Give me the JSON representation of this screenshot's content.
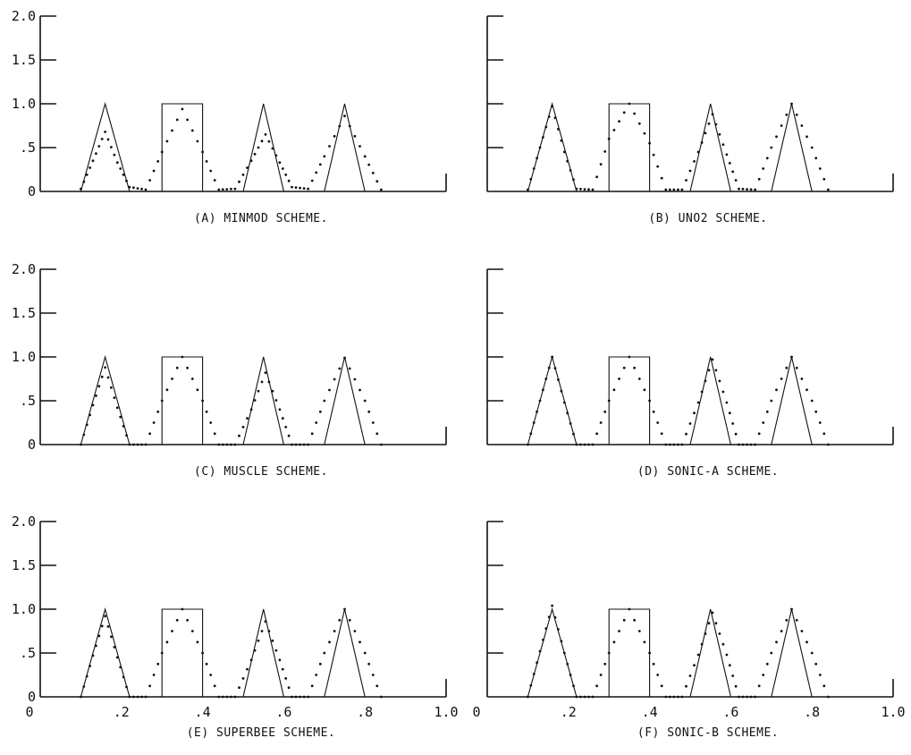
{
  "figure": {
    "shared_x_tick_labels": [
      "0",
      ".2",
      ".4",
      ".6",
      ".8",
      "1.0"
    ],
    "y_tick_labels": [
      "2.0",
      "1.5",
      "1.0",
      ".5",
      "0"
    ]
  },
  "chart_data": [
    {
      "type": "line",
      "caption": "(A) MINMOD SCHEME.",
      "xlim": [
        0,
        1.0
      ],
      "ylim": [
        0,
        2.0
      ],
      "y_ticks": [
        2.0,
        1.5,
        1.0,
        0.5,
        0
      ],
      "series": [
        {
          "style": "solid",
          "x": [
            0.1,
            0.16,
            0.22,
            0.3,
            0.3,
            0.4,
            0.4,
            0.5,
            0.55,
            0.6,
            0.7,
            0.75,
            0.8
          ],
          "y": [
            0,
            1.0,
            0,
            0,
            1.0,
            1.0,
            0,
            0,
            1.0,
            0,
            0,
            1.0,
            0
          ]
        },
        {
          "style": "dots",
          "x": [
            0.1,
            0.13,
            0.16,
            0.19,
            0.22,
            0.26,
            0.3,
            0.35,
            0.4,
            0.44,
            0.48,
            0.52,
            0.555,
            0.59,
            0.62,
            0.66,
            0.7,
            0.75,
            0.8,
            0.84
          ],
          "y": [
            0.03,
            0.35,
            0.68,
            0.33,
            0.05,
            0.02,
            0.45,
            0.94,
            0.45,
            0.02,
            0.03,
            0.35,
            0.65,
            0.33,
            0.05,
            0.03,
            0.4,
            0.86,
            0.4,
            0.02
          ]
        }
      ]
    },
    {
      "type": "line",
      "caption": "(B) UNO2 SCHEME.",
      "xlim": [
        0,
        1.0
      ],
      "ylim": [
        0,
        2.0
      ],
      "y_ticks": [
        2.0,
        1.5,
        1.0,
        0.5,
        0
      ],
      "series": [
        {
          "style": "solid",
          "x": [
            0.1,
            0.16,
            0.22,
            0.3,
            0.3,
            0.4,
            0.4,
            0.5,
            0.55,
            0.6,
            0.7,
            0.75,
            0.8
          ],
          "y": [
            0,
            1.0,
            0,
            0,
            1.0,
            1.0,
            0,
            0,
            1.0,
            0,
            0,
            1.0,
            0
          ]
        },
        {
          "style": "dots",
          "x": [
            0.1,
            0.13,
            0.16,
            0.19,
            0.22,
            0.26,
            0.3,
            0.35,
            0.4,
            0.44,
            0.48,
            0.52,
            0.555,
            0.59,
            0.62,
            0.66,
            0.7,
            0.75,
            0.8,
            0.84
          ],
          "y": [
            0.02,
            0.5,
            0.97,
            0.45,
            0.03,
            0.02,
            0.6,
            1.0,
            0.55,
            0.02,
            0.02,
            0.45,
            0.88,
            0.42,
            0.03,
            0.02,
            0.5,
            1.0,
            0.5,
            0.02
          ]
        }
      ]
    },
    {
      "type": "line",
      "caption": "(C) MUSCLE SCHEME.",
      "xlim": [
        0,
        1.0
      ],
      "ylim": [
        0,
        2.0
      ],
      "y_ticks": [
        2.0,
        1.5,
        1.0,
        0.5,
        0
      ],
      "series": [
        {
          "style": "solid",
          "x": [
            0.1,
            0.16,
            0.22,
            0.3,
            0.3,
            0.4,
            0.4,
            0.5,
            0.55,
            0.6,
            0.7,
            0.75,
            0.8
          ],
          "y": [
            0,
            1.0,
            0,
            0,
            1.0,
            1.0,
            0,
            0,
            1.0,
            0,
            0,
            1.0,
            0
          ]
        },
        {
          "style": "dots",
          "x": [
            0.1,
            0.13,
            0.16,
            0.19,
            0.22,
            0.26,
            0.3,
            0.35,
            0.4,
            0.44,
            0.48,
            0.52,
            0.555,
            0.59,
            0.62,
            0.66,
            0.7,
            0.75,
            0.8,
            0.84
          ],
          "y": [
            0.0,
            0.45,
            0.88,
            0.42,
            0.0,
            0.0,
            0.5,
            1.0,
            0.5,
            0.0,
            0.0,
            0.4,
            0.82,
            0.4,
            0.0,
            0.0,
            0.5,
            0.99,
            0.5,
            0.0
          ]
        }
      ]
    },
    {
      "type": "line",
      "caption": "(D) SONIC-A SCHEME.",
      "xlim": [
        0,
        1.0
      ],
      "ylim": [
        0,
        2.0
      ],
      "y_ticks": [
        2.0,
        1.5,
        1.0,
        0.5,
        0
      ],
      "series": [
        {
          "style": "solid",
          "x": [
            0.1,
            0.16,
            0.22,
            0.3,
            0.3,
            0.4,
            0.4,
            0.5,
            0.55,
            0.6,
            0.7,
            0.75,
            0.8
          ],
          "y": [
            0,
            1.0,
            0,
            0,
            1.0,
            1.0,
            0,
            0,
            1.0,
            0,
            0,
            1.0,
            0
          ]
        },
        {
          "style": "dots",
          "x": [
            0.1,
            0.13,
            0.16,
            0.19,
            0.22,
            0.26,
            0.3,
            0.35,
            0.4,
            0.44,
            0.48,
            0.52,
            0.555,
            0.59,
            0.62,
            0.66,
            0.7,
            0.75,
            0.8,
            0.84
          ],
          "y": [
            0.0,
            0.5,
            1.0,
            0.48,
            0.0,
            0.0,
            0.5,
            1.0,
            0.5,
            0.0,
            0.0,
            0.48,
            0.97,
            0.48,
            0.0,
            0.0,
            0.5,
            1.0,
            0.5,
            0.0
          ]
        }
      ]
    },
    {
      "type": "line",
      "caption": "(E) SUPERBEE SCHEME.",
      "xlim": [
        0,
        1.0
      ],
      "ylim": [
        0,
        2.0
      ],
      "y_ticks": [
        2.0,
        1.5,
        1.0,
        0.5,
        0
      ],
      "series": [
        {
          "style": "solid",
          "x": [
            0.1,
            0.16,
            0.22,
            0.3,
            0.3,
            0.4,
            0.4,
            0.5,
            0.55,
            0.6,
            0.7,
            0.75,
            0.8
          ],
          "y": [
            0,
            1.0,
            0,
            0,
            1.0,
            1.0,
            0,
            0,
            1.0,
            0,
            0,
            1.0,
            0
          ]
        },
        {
          "style": "dots",
          "x": [
            0.1,
            0.13,
            0.16,
            0.19,
            0.22,
            0.26,
            0.3,
            0.35,
            0.4,
            0.44,
            0.48,
            0.52,
            0.555,
            0.59,
            0.62,
            0.66,
            0.7,
            0.75,
            0.8,
            0.84
          ],
          "y": [
            0.0,
            0.47,
            0.92,
            0.45,
            0.0,
            0.0,
            0.5,
            1.0,
            0.5,
            0.0,
            0.0,
            0.42,
            0.86,
            0.42,
            0.0,
            0.0,
            0.5,
            1.0,
            0.5,
            0.0
          ]
        }
      ]
    },
    {
      "type": "line",
      "caption": "(F) SONIC-B SCHEME.",
      "xlim": [
        0,
        1.0
      ],
      "ylim": [
        0,
        2.0
      ],
      "y_ticks": [
        2.0,
        1.5,
        1.0,
        0.5,
        0
      ],
      "series": [
        {
          "style": "solid",
          "x": [
            0.1,
            0.16,
            0.22,
            0.3,
            0.3,
            0.4,
            0.4,
            0.5,
            0.55,
            0.6,
            0.7,
            0.75,
            0.8
          ],
          "y": [
            0,
            1.0,
            0,
            0,
            1.0,
            1.0,
            0,
            0,
            1.0,
            0,
            0,
            1.0,
            0
          ]
        },
        {
          "style": "dots",
          "x": [
            0.1,
            0.13,
            0.16,
            0.19,
            0.22,
            0.26,
            0.3,
            0.35,
            0.4,
            0.44,
            0.48,
            0.52,
            0.555,
            0.59,
            0.62,
            0.66,
            0.7,
            0.75,
            0.8,
            0.84
          ],
          "y": [
            0.0,
            0.52,
            1.04,
            0.5,
            0.0,
            0.0,
            0.5,
            1.0,
            0.5,
            0.0,
            0.0,
            0.48,
            0.96,
            0.48,
            0.0,
            0.0,
            0.5,
            1.0,
            0.5,
            0.0
          ]
        }
      ]
    }
  ]
}
